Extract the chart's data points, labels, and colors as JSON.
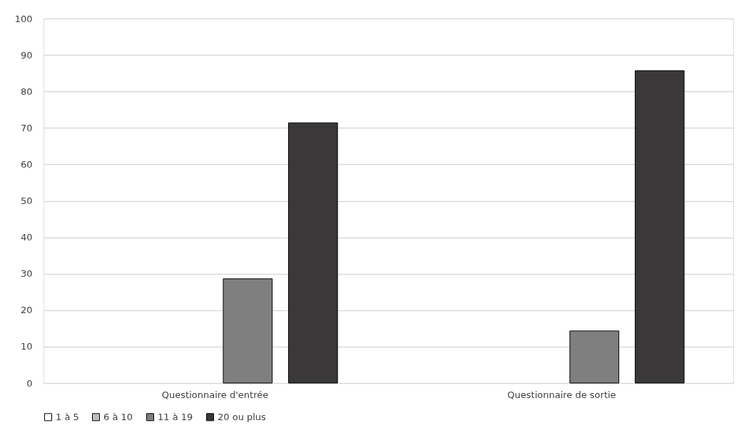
{
  "chart_data": {
    "type": "bar",
    "categories": [
      "Questionnaire d'entrée",
      "Questionnaire de sortie"
    ],
    "series": [
      {
        "name": "1 à 5",
        "color": "#ffffff",
        "values": [
          0,
          0
        ]
      },
      {
        "name": "6 à 10",
        "color": "#bfbfbf",
        "values": [
          0,
          0
        ]
      },
      {
        "name": "11 à 19",
        "color": "#7f7f7f",
        "values": [
          28.6,
          14.3
        ]
      },
      {
        "name": "20 ou plus",
        "color": "#3a3838",
        "values": [
          71.4,
          85.7
        ]
      }
    ],
    "ylim": [
      0,
      100
    ],
    "yticks": [
      0,
      10,
      20,
      30,
      40,
      50,
      60,
      70,
      80,
      90,
      100
    ],
    "grid": "y",
    "legend": "bottom"
  }
}
